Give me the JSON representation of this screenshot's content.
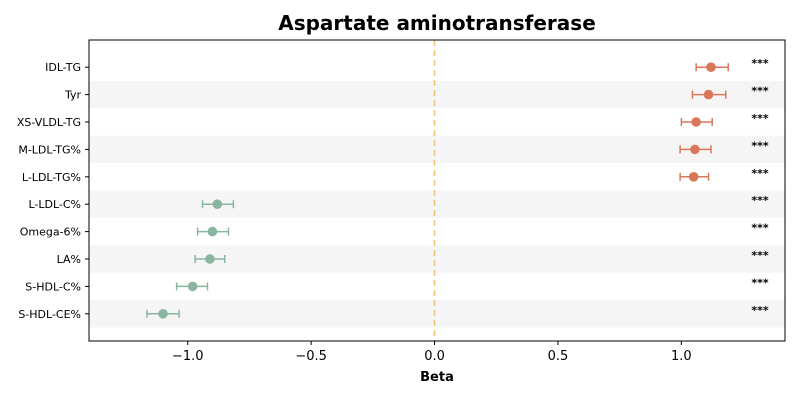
{
  "chart_data": {
    "type": "scatter",
    "subtype": "forest-plot",
    "title": "Aspartate aminotransferase",
    "xlabel": "Beta",
    "ylabel": "",
    "xlim": [
      -1.4,
      1.42
    ],
    "xticks": [
      -1.0,
      -0.5,
      0.0,
      0.5,
      1.0
    ],
    "xtick_labels": [
      "−1.0",
      "−0.5",
      "0.0",
      "0.5",
      "1.0"
    ],
    "reference_line": {
      "x": 0.0,
      "style": "dashed",
      "color": "#f0c27a"
    },
    "row_stripe_color": "#f5f5f5",
    "positive_color": "#d9775a",
    "negative_color": "#8ab5a0",
    "rows": [
      {
        "label": "IDL-TG",
        "beta": 1.12,
        "ci": [
          1.06,
          1.19
        ],
        "sig": "***"
      },
      {
        "label": "Tyr",
        "beta": 1.11,
        "ci": [
          1.045,
          1.18
        ],
        "sig": "***"
      },
      {
        "label": "XS-VLDL-TG",
        "beta": 1.06,
        "ci": [
          1.0,
          1.125
        ],
        "sig": "***"
      },
      {
        "label": "M-LDL-TG%",
        "beta": 1.055,
        "ci": [
          0.995,
          1.12
        ],
        "sig": "***"
      },
      {
        "label": "L-LDL-TG%",
        "beta": 1.05,
        "ci": [
          0.995,
          1.11
        ],
        "sig": "***"
      },
      {
        "label": "L-LDL-C%",
        "beta": -0.88,
        "ci": [
          -0.94,
          -0.815
        ],
        "sig": "***"
      },
      {
        "label": "Omega-6%",
        "beta": -0.9,
        "ci": [
          -0.96,
          -0.835
        ],
        "sig": "***"
      },
      {
        "label": "LA%",
        "beta": -0.91,
        "ci": [
          -0.97,
          -0.85
        ],
        "sig": "***"
      },
      {
        "label": "S-HDL-C%",
        "beta": -0.98,
        "ci": [
          -1.045,
          -0.92
        ],
        "sig": "***"
      },
      {
        "label": "S-HDL-CE%",
        "beta": -1.1,
        "ci": [
          -1.165,
          -1.035
        ],
        "sig": "***"
      }
    ]
  }
}
